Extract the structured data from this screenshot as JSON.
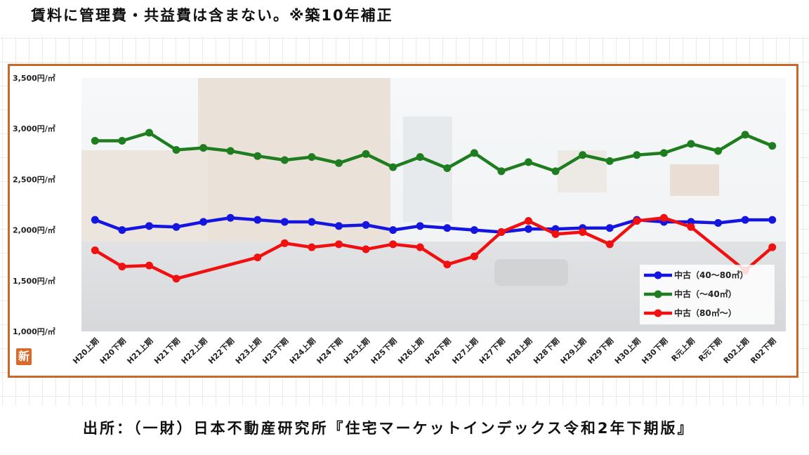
{
  "header_note": "賃料に管理費・共益費は含まない。※築10年補正",
  "source": "出所：（一財）日本不動産研究所『住宅マーケットインデックス令和2年下期版』",
  "badge": "新",
  "colors": {
    "frame": "#c8682a",
    "series_40_80": "#1515e0",
    "series_under_40": "#1e7d1e",
    "series_over_80": "#f01010"
  },
  "chart_data": {
    "type": "line",
    "title": "",
    "xlabel": "",
    "ylabel": "",
    "ylim": [
      1000,
      3500
    ],
    "yticks": [
      {
        "value": 3500,
        "label": "3,500円/㎡"
      },
      {
        "value": 3000,
        "label": "3,000円/㎡"
      },
      {
        "value": 2500,
        "label": "2,500円/㎡"
      },
      {
        "value": 2000,
        "label": "2,000円/㎡"
      },
      {
        "value": 1500,
        "label": "1,500円/㎡"
      },
      {
        "value": 1000,
        "label": "1,000円/㎡"
      }
    ],
    "categories": [
      "H20上期",
      "H20下期",
      "H21上期",
      "H21下期",
      "H22上期",
      "H22下期",
      "H23上期",
      "H23下期",
      "H24上期",
      "H24下期",
      "H25上期",
      "H25下期",
      "H26上期",
      "H26下期",
      "H27上期",
      "H27下期",
      "H28上期",
      "H28下期",
      "H29上期",
      "H29下期",
      "H30上期",
      "H30下期",
      "R元上期",
      "R元下期",
      "R02上期",
      "R02下期"
    ],
    "legend_position": "bottom-right",
    "series": [
      {
        "name": "中古（40～80㎡）",
        "color": "#1515e0",
        "values": [
          2100,
          2000,
          2040,
          2030,
          2080,
          2120,
          2100,
          2080,
          2080,
          2040,
          2050,
          2000,
          2040,
          2020,
          2000,
          1980,
          2010,
          2010,
          2020,
          2020,
          2100,
          2080,
          2080,
          2070,
          2100,
          2100
        ]
      },
      {
        "name": "中古（～40㎡）",
        "color": "#1e7d1e",
        "values": [
          2880,
          2880,
          2960,
          2790,
          2810,
          2780,
          2730,
          2690,
          2720,
          2660,
          2750,
          2620,
          2720,
          2610,
          2760,
          2580,
          2670,
          2580,
          2740,
          2680,
          2740,
          2760,
          2850,
          2780,
          2940,
          2830
        ]
      },
      {
        "name": "中古（80㎡～）",
        "color": "#f01010",
        "values": [
          1800,
          1640,
          1650,
          1520,
          null,
          null,
          1730,
          1870,
          1830,
          1860,
          1810,
          1860,
          1830,
          1660,
          1740,
          1980,
          2090,
          1960,
          1980,
          1860,
          2090,
          2120,
          2030,
          null,
          1600,
          1830
        ]
      }
    ]
  }
}
